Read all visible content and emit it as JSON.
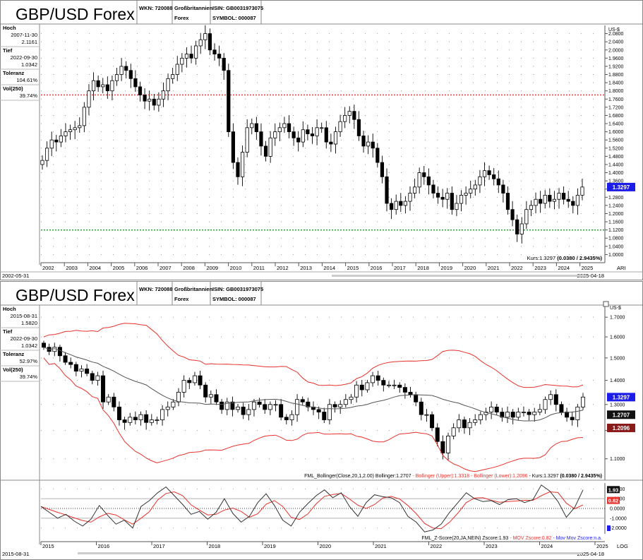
{
  "top_chart": {
    "header": {
      "title": "GBP/USD Forex",
      "wkn": "WKN: 720088",
      "country": "Großbritannien",
      "type": "Forex",
      "isin": "ISIN: GB0031973075",
      "symbol": "SYMBOL: 000087"
    },
    "info_panel": [
      {
        "label": "Hoch",
        "value": "2007-11-30",
        "value2": "2.1161"
      },
      {
        "label": "Tief",
        "value": "2022-09-30",
        "value2": "1.0342"
      },
      {
        "label": "Toleranz",
        "value": "104.61%"
      },
      {
        "label": "Vol(250)",
        "value": "39.74%"
      }
    ],
    "currency_label": "US-$",
    "price_badge": "1.3297",
    "status": {
      "prefix": "Kurs:1.3297 ",
      "bold": "(0.0380 / 2.9435%)"
    },
    "date_start": "2002-05-31",
    "date_end": "2025-04-18",
    "scale_label": "ARI",
    "colors": {
      "high_line": "#e8322c",
      "low_line": "#1f9a2e",
      "badge": "#1d1dea"
    }
  },
  "bottom_chart": {
    "header": {
      "title": "GBP/USD Forex",
      "wkn": "WKN: 720088",
      "country": "Großbritannien",
      "type": "Forex",
      "isin": "ISIN: GB0031973075",
      "symbol": "SYMBOL: 000087"
    },
    "info_panel": [
      {
        "label": "Hoch",
        "value": "2015-08-31",
        "value2": "1.5820"
      },
      {
        "label": "Tief",
        "value": "2022-09-30",
        "value2": "1.0342"
      },
      {
        "label": "Toleranz",
        "value": "52.97%"
      },
      {
        "label": "Vol(250)",
        "value": "39.74%"
      }
    ],
    "currency_label": "US-$",
    "badges": [
      {
        "text": "1.3297",
        "color": "#1d1dea"
      },
      {
        "text": "1.2707",
        "color": "#111111"
      },
      {
        "text": "1.2096",
        "color": "#8b1a1a"
      }
    ],
    "legend": [
      {
        "text": "FML_Bollinger(Close,20,1,2.00) Bollinger:1.2707",
        "color": "#000000"
      },
      {
        "text": " - Bollinger (Upper):1.3318",
        "color": "#e8322c"
      },
      {
        "text": " - Bollinger (Lower):1.2096",
        "color": "#e8322c"
      },
      {
        "text": " - Kurs:1.3297 ",
        "color": "#000000"
      },
      {
        "text": "(0.0380 / 2.9435%)",
        "color": "#000000",
        "bold": true
      }
    ],
    "z_legend": [
      {
        "text": "FML_Z-Score(20,JA,NEIN) Zscore:1.93",
        "color": "#000000"
      },
      {
        "text": " - MOV Zscore:0.82",
        "color": "#e8322c"
      },
      {
        "text": " - Mov Mov Zscore:n.a.",
        "color": "#1d1dea"
      }
    ],
    "z_badges": [
      {
        "text": "1.93",
        "color": "#111111"
      },
      {
        "text": "0.82",
        "color": "#e8322c"
      }
    ],
    "date_start": "2015-08-31",
    "date_end": "2025-04-18",
    "scale_label": "LOG"
  },
  "chart_data": [
    {
      "type": "candlestick",
      "title": "GBP/USD Forex",
      "ylabel": "US-$",
      "ylim": [
        0.96,
        2.12
      ],
      "y_ticks": [
        1.0,
        1.04,
        1.08,
        1.12,
        1.16,
        1.2,
        1.24,
        1.28,
        1.32,
        1.36,
        1.4,
        1.44,
        1.48,
        1.52,
        1.56,
        1.6,
        1.64,
        1.68,
        1.72,
        1.76,
        1.8,
        1.84,
        1.88,
        1.92,
        1.96,
        2.0,
        2.04,
        2.08
      ],
      "x_ticks": [
        "2002",
        "2003",
        "2004",
        "2005",
        "2006",
        "2007",
        "2008",
        "2009",
        "2010",
        "2011",
        "2012",
        "2013",
        "2014",
        "2015",
        "2016",
        "2017",
        "2018",
        "2019",
        "2020",
        "2021",
        "2022",
        "2023",
        "2024",
        "2025"
      ],
      "reference_lines": [
        {
          "name": "Hoch",
          "value": 1.78
        },
        {
          "name": "Tief",
          "value": 1.12
        }
      ],
      "series_close": [
        1.46,
        1.52,
        1.56,
        1.55,
        1.58,
        1.6,
        1.61,
        1.62,
        1.63,
        1.72,
        1.8,
        1.85,
        1.82,
        1.83,
        1.8,
        1.85,
        1.88,
        1.92,
        1.9,
        1.86,
        1.82,
        1.78,
        1.75,
        1.76,
        1.73,
        1.76,
        1.8,
        1.86,
        1.88,
        1.93,
        1.96,
        1.98,
        1.96,
        2.02,
        2.05,
        2.08,
        2.0,
        1.98,
        1.96,
        1.9,
        1.6,
        1.45,
        1.38,
        1.5,
        1.62,
        1.64,
        1.6,
        1.53,
        1.48,
        1.57,
        1.6,
        1.62,
        1.64,
        1.6,
        1.57,
        1.55,
        1.61,
        1.59,
        1.58,
        1.62,
        1.62,
        1.55,
        1.54,
        1.6,
        1.65,
        1.68,
        1.7,
        1.66,
        1.58,
        1.53,
        1.55,
        1.52,
        1.45,
        1.38,
        1.25,
        1.22,
        1.26,
        1.24,
        1.26,
        1.3,
        1.33,
        1.4,
        1.38,
        1.34,
        1.3,
        1.28,
        1.27,
        1.3,
        1.22,
        1.25,
        1.29,
        1.3,
        1.32,
        1.34,
        1.38,
        1.41,
        1.39,
        1.37,
        1.34,
        1.3,
        1.22,
        1.17,
        1.1,
        1.15,
        1.22,
        1.24,
        1.27,
        1.25,
        1.29,
        1.26,
        1.27,
        1.3,
        1.27,
        1.26,
        1.24,
        1.29,
        1.33
      ]
    },
    {
      "type": "candlestick",
      "title": "GBP/USD Forex",
      "ylabel": "US-$",
      "yscale": "log",
      "y_ticks": [
        1.1,
        1.2,
        1.3,
        1.4,
        1.5,
        1.6,
        1.7
      ],
      "x_ticks": [
        "2015",
        "2016",
        "2017",
        "2018",
        "2019",
        "2020",
        "2021",
        "2022",
        "2023",
        "2024",
        "2025"
      ],
      "series": [
        {
          "name": "Bollinger",
          "last": 1.2707
        },
        {
          "name": "Bollinger (Upper)",
          "last": 1.3318
        },
        {
          "name": "Bollinger (Lower)",
          "last": 1.2096
        },
        {
          "name": "Kurs",
          "last": 1.3297
        }
      ],
      "series_close": [
        1.55,
        1.53,
        1.55,
        1.51,
        1.48,
        1.47,
        1.44,
        1.45,
        1.43,
        1.4,
        1.42,
        1.31,
        1.33,
        1.29,
        1.24,
        1.23,
        1.25,
        1.24,
        1.26,
        1.23,
        1.24,
        1.24,
        1.28,
        1.29,
        1.31,
        1.35,
        1.4,
        1.39,
        1.42,
        1.38,
        1.33,
        1.34,
        1.31,
        1.28,
        1.31,
        1.28,
        1.29,
        1.26,
        1.28,
        1.31,
        1.3,
        1.28,
        1.3,
        1.3,
        1.25,
        1.24,
        1.26,
        1.32,
        1.31,
        1.29,
        1.28,
        1.27,
        1.24,
        1.3,
        1.29,
        1.3,
        1.32,
        1.33,
        1.38,
        1.36,
        1.39,
        1.42,
        1.4,
        1.38,
        1.38,
        1.38,
        1.37,
        1.35,
        1.34,
        1.31,
        1.26,
        1.26,
        1.21,
        1.16,
        1.12,
        1.18,
        1.21,
        1.24,
        1.21,
        1.23,
        1.24,
        1.26,
        1.27,
        1.29,
        1.27,
        1.25,
        1.27,
        1.25,
        1.27,
        1.27,
        1.26,
        1.27,
        1.28,
        1.32,
        1.34,
        1.3,
        1.27,
        1.25,
        1.24,
        1.29,
        1.33
      ]
    },
    {
      "type": "line",
      "title": "FML_Z-Score(20,JA,NEIN)",
      "y_ticks": [
        2.0,
        1.0,
        0.0,
        -1.0,
        -2.0
      ],
      "x_ticks": [
        "2015",
        "2016",
        "2017",
        "2018",
        "2019",
        "2020",
        "2021",
        "2022",
        "2023",
        "2024",
        "2025"
      ],
      "series": [
        {
          "name": "Zscore",
          "last": 1.93
        },
        {
          "name": "MOV Zscore",
          "last": 0.82
        }
      ],
      "zscore": [
        0.2,
        -0.4,
        -1.0,
        -0.6,
        -1.3,
        -1.8,
        -1.1,
        0.3,
        -0.7,
        -1.6,
        -1.2,
        -2.0,
        0.2,
        0.8,
        1.6,
        2.2,
        1.3,
        0.4,
        -0.6,
        -0.3,
        -1.1,
        -0.4,
        1.0,
        -0.5,
        -1.4,
        -0.8,
        0.6,
        1.5,
        0.3,
        -1.2,
        -1.8,
        -0.4,
        0.5,
        1.3,
        1.9,
        1.1,
        1.6,
        0.2,
        -0.8,
        0.6,
        1.4,
        1.2,
        1.1,
        0.6,
        -0.8,
        -1.4,
        -2.4,
        -2.2,
        -1.6,
        -0.4,
        0.6,
        1.6,
        1.0,
        0.7,
        0.8,
        0.4,
        0.9,
        1.0,
        0.6,
        0.9,
        2.4,
        1.8,
        0.7,
        -0.9,
        0.1,
        1.9
      ]
    }
  ]
}
